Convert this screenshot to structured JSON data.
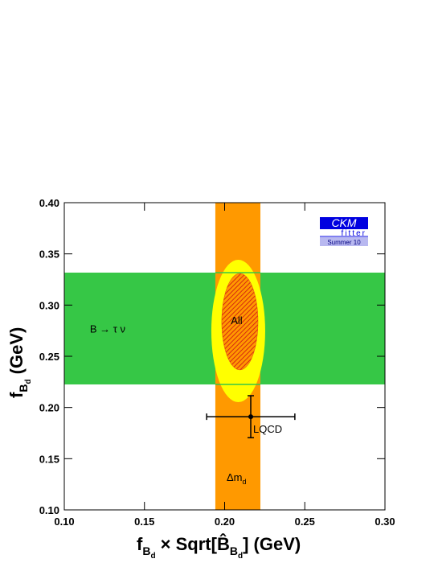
{
  "chart_data": {
    "type": "constraint",
    "xlabel": [
      "f",
      "B",
      "d",
      " × Sqrt[",
      "B̂",
      "B",
      "d",
      "] (GeV)"
    ],
    "ylabel": [
      "f",
      "B",
      "d",
      " (GeV)"
    ],
    "xlim": [
      0.1,
      0.3
    ],
    "ylim": [
      0.1,
      0.4
    ],
    "xticks": [
      {
        "value": 0.1,
        "label": "0.10"
      },
      {
        "value": 0.15,
        "label": "0.15"
      },
      {
        "value": 0.2,
        "label": "0.20"
      },
      {
        "value": 0.25,
        "label": "0.25"
      },
      {
        "value": 0.3,
        "label": "0.30"
      }
    ],
    "yticks": [
      {
        "value": 0.1,
        "label": "0.10"
      },
      {
        "value": 0.15,
        "label": "0.15"
      },
      {
        "value": 0.2,
        "label": "0.20"
      },
      {
        "value": 0.25,
        "label": "0.25"
      },
      {
        "value": 0.3,
        "label": "0.30"
      },
      {
        "value": 0.35,
        "label": "0.35"
      },
      {
        "value": 0.4,
        "label": "0.40"
      }
    ],
    "x_band": {
      "label": [
        "Δm",
        "d"
      ],
      "range": [
        0.1942,
        0.2223
      ],
      "color": "#ff9900"
    },
    "y_band": {
      "label": "B → τ ν",
      "range": [
        0.2225,
        0.3317
      ],
      "color": "#36c746"
    },
    "contours": [
      {
        "label": "All",
        "center": [
          0.2085,
          0.2747
        ],
        "semi_axes": [
          0.0168,
          0.0695
        ],
        "color": "#ffff00"
      },
      {
        "center": [
          0.2095,
          0.2838
        ],
        "semi_axes": [
          0.0113,
          0.0471
        ],
        "color": "#e8401c"
      }
    ],
    "point": {
      "label": "LQCD",
      "x": 0.2163,
      "y": 0.191,
      "xerr": 0.0275,
      "yerr": 0.0205
    },
    "logo": {
      "title": "CKM",
      "subtitle": "fitter",
      "edition": "Summer 10"
    }
  }
}
